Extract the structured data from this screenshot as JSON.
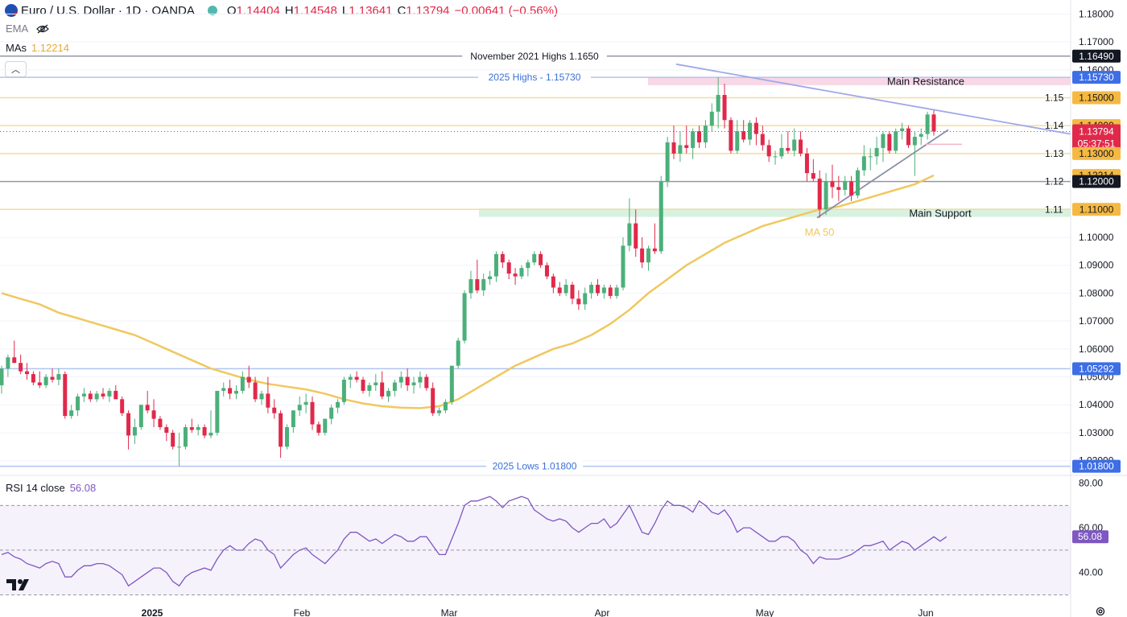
{
  "header": {
    "symbol": "Euro / U.S. Dollar · 1D · OANDA",
    "o_label": "O",
    "o": "1.14404",
    "h_label": "H",
    "h": "1.14548",
    "l_label": "L",
    "l": "1.13641",
    "c_label": "C",
    "c": "1.13794",
    "change": "−0.00641 (−0.56%)"
  },
  "indicators": {
    "ema_label": "EMA",
    "mas_label": "MAs",
    "mas_value": "1.12214",
    "rsi_label": "RSI 14 close",
    "rsi_value": "56.08"
  },
  "colors": {
    "up": "#26a69a",
    "up_body": "#4caf7a",
    "down": "#e0294a",
    "ma": "#f0c85f",
    "rsi": "#7e57c2",
    "resistance_zone": "#f8d7e6",
    "support_zone": "#d9f1df",
    "level_blue": "#b0c4f0",
    "level_yellow": "#f5dd9a",
    "level_grey": "#9598a1",
    "trend": "#a0a8e8"
  },
  "chart_data": {
    "type": "candlestick",
    "title": "Euro / U.S. Dollar · 1D · OANDA",
    "x_ticks": [
      "2025",
      "Feb",
      "Mar",
      "Apr",
      "May",
      "Jun"
    ],
    "y_ticks": [
      "1.18000",
      "1.17000",
      "1.16000",
      "1.15000",
      "1.14000",
      "1.13000",
      "1.12000",
      "1.11000",
      "1.10000",
      "1.09000",
      "1.08000",
      "1.07000",
      "1.06000",
      "1.05000",
      "1.04000",
      "1.03000",
      "1.02000"
    ],
    "ylim": [
      1.015,
      1.185
    ],
    "candles": [
      [
        1.047,
        1.054,
        1.044,
        1.053
      ],
      [
        1.053,
        1.058,
        1.05,
        1.057
      ],
      [
        1.057,
        1.063,
        1.055,
        1.055
      ],
      [
        1.055,
        1.058,
        1.051,
        1.052
      ],
      [
        1.052,
        1.055,
        1.049,
        1.051
      ],
      [
        1.051,
        1.052,
        1.047,
        1.048
      ],
      [
        1.048,
        1.052,
        1.046,
        1.047
      ],
      [
        1.047,
        1.051,
        1.046,
        1.05
      ],
      [
        1.05,
        1.053,
        1.048,
        1.049
      ],
      [
        1.049,
        1.053,
        1.047,
        1.051
      ],
      [
        1.051,
        1.052,
        1.035,
        1.036
      ],
      [
        1.036,
        1.04,
        1.035,
        1.038
      ],
      [
        1.038,
        1.044,
        1.036,
        1.043
      ],
      [
        1.043,
        1.046,
        1.041,
        1.044
      ],
      [
        1.044,
        1.045,
        1.041,
        1.042
      ],
      [
        1.042,
        1.045,
        1.041,
        1.044
      ],
      [
        1.044,
        1.046,
        1.042,
        1.043
      ],
      [
        1.043,
        1.046,
        1.041,
        1.045
      ],
      [
        1.045,
        1.047,
        1.042,
        1.042
      ],
      [
        1.042,
        1.043,
        1.036,
        1.037
      ],
      [
        1.037,
        1.038,
        1.024,
        1.029
      ],
      [
        1.029,
        1.035,
        1.026,
        1.032
      ],
      [
        1.032,
        1.04,
        1.031,
        1.04
      ],
      [
        1.04,
        1.045,
        1.037,
        1.038
      ],
      [
        1.038,
        1.042,
        1.032,
        1.035
      ],
      [
        1.035,
        1.036,
        1.031,
        1.032
      ],
      [
        1.032,
        1.033,
        1.027,
        1.03
      ],
      [
        1.03,
        1.031,
        1.024,
        1.025
      ],
      [
        1.025,
        1.03,
        1.018,
        1.025
      ],
      [
        1.025,
        1.033,
        1.024,
        1.032
      ],
      [
        1.032,
        1.035,
        1.03,
        1.031
      ],
      [
        1.031,
        1.033,
        1.029,
        1.032
      ],
      [
        1.032,
        1.033,
        1.028,
        1.029
      ],
      [
        1.029,
        1.038,
        1.028,
        1.03
      ],
      [
        1.03,
        1.045,
        1.029,
        1.045
      ],
      [
        1.045,
        1.048,
        1.043,
        1.046
      ],
      [
        1.046,
        1.049,
        1.042,
        1.044
      ],
      [
        1.044,
        1.047,
        1.042,
        1.045
      ],
      [
        1.045,
        1.052,
        1.044,
        1.05
      ],
      [
        1.05,
        1.054,
        1.046,
        1.048
      ],
      [
        1.048,
        1.05,
        1.041,
        1.042
      ],
      [
        1.042,
        1.045,
        1.04,
        1.044
      ],
      [
        1.044,
        1.05,
        1.037,
        1.039
      ],
      [
        1.039,
        1.042,
        1.035,
        1.037
      ],
      [
        1.037,
        1.038,
        1.021,
        1.025
      ],
      [
        1.025,
        1.033,
        1.024,
        1.032
      ],
      [
        1.032,
        1.038,
        1.03,
        1.038
      ],
      [
        1.038,
        1.043,
        1.036,
        1.04
      ],
      [
        1.04,
        1.044,
        1.037,
        1.041
      ],
      [
        1.041,
        1.043,
        1.031,
        1.033
      ],
      [
        1.033,
        1.034,
        1.029,
        1.03
      ],
      [
        1.03,
        1.035,
        1.029,
        1.035
      ],
      [
        1.035,
        1.04,
        1.033,
        1.039
      ],
      [
        1.039,
        1.042,
        1.037,
        1.041
      ],
      [
        1.041,
        1.05,
        1.04,
        1.049
      ],
      [
        1.049,
        1.051,
        1.046,
        1.05
      ],
      [
        1.05,
        1.052,
        1.048,
        1.049
      ],
      [
        1.049,
        1.05,
        1.044,
        1.045
      ],
      [
        1.045,
        1.048,
        1.043,
        1.047
      ],
      [
        1.047,
        1.051,
        1.045,
        1.048
      ],
      [
        1.048,
        1.052,
        1.042,
        1.043
      ],
      [
        1.043,
        1.046,
        1.041,
        1.045
      ],
      [
        1.045,
        1.049,
        1.043,
        1.048
      ],
      [
        1.048,
        1.052,
        1.046,
        1.05
      ],
      [
        1.05,
        1.053,
        1.045,
        1.047
      ],
      [
        1.047,
        1.05,
        1.044,
        1.048
      ],
      [
        1.048,
        1.052,
        1.046,
        1.05
      ],
      [
        1.05,
        1.051,
        1.045,
        1.046
      ],
      [
        1.046,
        1.048,
        1.036,
        1.037
      ],
      [
        1.037,
        1.039,
        1.036,
        1.038
      ],
      [
        1.038,
        1.042,
        1.037,
        1.041
      ],
      [
        1.041,
        1.054,
        1.04,
        1.054
      ],
      [
        1.054,
        1.064,
        1.053,
        1.063
      ],
      [
        1.063,
        1.081,
        1.062,
        1.08
      ],
      [
        1.08,
        1.088,
        1.078,
        1.085
      ],
      [
        1.085,
        1.092,
        1.08,
        1.081
      ],
      [
        1.081,
        1.087,
        1.079,
        1.085
      ],
      [
        1.085,
        1.088,
        1.083,
        1.086
      ],
      [
        1.086,
        1.095,
        1.084,
        1.094
      ],
      [
        1.094,
        1.095,
        1.089,
        1.091
      ],
      [
        1.091,
        1.092,
        1.085,
        1.087
      ],
      [
        1.087,
        1.089,
        1.083,
        1.086
      ],
      [
        1.086,
        1.09,
        1.085,
        1.089
      ],
      [
        1.089,
        1.092,
        1.086,
        1.091
      ],
      [
        1.091,
        1.095,
        1.09,
        1.094
      ],
      [
        1.094,
        1.095,
        1.089,
        1.09
      ],
      [
        1.09,
        1.091,
        1.085,
        1.086
      ],
      [
        1.086,
        1.087,
        1.08,
        1.082
      ],
      [
        1.082,
        1.084,
        1.079,
        1.08
      ],
      [
        1.08,
        1.085,
        1.079,
        1.083
      ],
      [
        1.083,
        1.084,
        1.076,
        1.078
      ],
      [
        1.078,
        1.081,
        1.074,
        1.076
      ],
      [
        1.076,
        1.082,
        1.074,
        1.08
      ],
      [
        1.08,
        1.084,
        1.078,
        1.083
      ],
      [
        1.083,
        1.085,
        1.079,
        1.08
      ],
      [
        1.08,
        1.083,
        1.078,
        1.082
      ],
      [
        1.082,
        1.083,
        1.078,
        1.079
      ],
      [
        1.079,
        1.083,
        1.078,
        1.082
      ],
      [
        1.082,
        1.1,
        1.081,
        1.097
      ],
      [
        1.097,
        1.114,
        1.095,
        1.105
      ],
      [
        1.105,
        1.11,
        1.093,
        1.096
      ],
      [
        1.096,
        1.1,
        1.089,
        1.091
      ],
      [
        1.091,
        1.097,
        1.088,
        1.096
      ],
      [
        1.096,
        1.105,
        1.094,
        1.095
      ],
      [
        1.095,
        1.122,
        1.094,
        1.12
      ],
      [
        1.12,
        1.136,
        1.118,
        1.134
      ],
      [
        1.134,
        1.14,
        1.128,
        1.13
      ],
      [
        1.13,
        1.138,
        1.127,
        1.133
      ],
      [
        1.133,
        1.14,
        1.13,
        1.132
      ],
      [
        1.132,
        1.139,
        1.128,
        1.138
      ],
      [
        1.138,
        1.14,
        1.132,
        1.134
      ],
      [
        1.134,
        1.142,
        1.132,
        1.14
      ],
      [
        1.14,
        1.148,
        1.138,
        1.145
      ],
      [
        1.145,
        1.1573,
        1.139,
        1.151
      ],
      [
        1.151,
        1.155,
        1.139,
        1.142
      ],
      [
        1.142,
        1.143,
        1.13,
        1.131
      ],
      [
        1.131,
        1.142,
        1.13,
        1.138
      ],
      [
        1.138,
        1.142,
        1.134,
        1.135
      ],
      [
        1.135,
        1.142,
        1.133,
        1.141
      ],
      [
        1.141,
        1.143,
        1.133,
        1.137
      ],
      [
        1.137,
        1.14,
        1.131,
        1.133
      ],
      [
        1.133,
        1.135,
        1.127,
        1.129
      ],
      [
        1.129,
        1.131,
        1.126,
        1.129
      ],
      [
        1.129,
        1.137,
        1.128,
        1.132
      ],
      [
        1.132,
        1.138,
        1.13,
        1.131
      ],
      [
        1.131,
        1.139,
        1.129,
        1.135
      ],
      [
        1.135,
        1.138,
        1.129,
        1.13
      ],
      [
        1.13,
        1.132,
        1.12,
        1.123
      ],
      [
        1.123,
        1.128,
        1.12,
        1.121
      ],
      [
        1.121,
        1.124,
        1.107,
        1.11
      ],
      [
        1.11,
        1.123,
        1.108,
        1.12
      ],
      [
        1.12,
        1.126,
        1.114,
        1.118
      ],
      [
        1.118,
        1.122,
        1.113,
        1.117
      ],
      [
        1.117,
        1.122,
        1.115,
        1.12
      ],
      [
        1.12,
        1.122,
        1.113,
        1.115
      ],
      [
        1.115,
        1.125,
        1.114,
        1.124
      ],
      [
        1.124,
        1.133,
        1.122,
        1.129
      ],
      [
        1.129,
        1.132,
        1.124,
        1.129
      ],
      [
        1.129,
        1.136,
        1.126,
        1.132
      ],
      [
        1.132,
        1.138,
        1.127,
        1.137
      ],
      [
        1.137,
        1.138,
        1.13,
        1.131
      ],
      [
        1.131,
        1.139,
        1.13,
        1.138
      ],
      [
        1.138,
        1.141,
        1.135,
        1.139
      ],
      [
        1.139,
        1.14,
        1.132,
        1.133
      ],
      [
        1.133,
        1.138,
        1.122,
        1.136
      ],
      [
        1.136,
        1.139,
        1.133,
        1.137
      ],
      [
        1.137,
        1.145,
        1.135,
        1.144
      ],
      [
        1.144,
        1.1455,
        1.1364,
        1.1379
      ]
    ],
    "ma50": [
      [
        0,
        1.08
      ],
      [
        3,
        1.078
      ],
      [
        6,
        1.076
      ],
      [
        9,
        1.073
      ],
      [
        12,
        1.071
      ],
      [
        15,
        1.069
      ],
      [
        18,
        1.067
      ],
      [
        21,
        1.065
      ],
      [
        24,
        1.062
      ],
      [
        27,
        1.059
      ],
      [
        30,
        1.056
      ],
      [
        33,
        1.053
      ],
      [
        36,
        1.051
      ],
      [
        39,
        1.049
      ],
      [
        42,
        1.0475
      ],
      [
        45,
        1.0465
      ],
      [
        48,
        1.0455
      ],
      [
        51,
        1.044
      ],
      [
        54,
        1.042
      ],
      [
        57,
        1.0405
      ],
      [
        60,
        1.0395
      ],
      [
        63,
        1.039
      ],
      [
        66,
        1.0388
      ],
      [
        69,
        1.0395
      ],
      [
        72,
        1.042
      ],
      [
        75,
        1.046
      ],
      [
        78,
        1.05
      ],
      [
        81,
        1.054
      ],
      [
        84,
        1.057
      ],
      [
        87,
        1.06
      ],
      [
        90,
        1.062
      ],
      [
        93,
        1.065
      ],
      [
        96,
        1.069
      ],
      [
        99,
        1.074
      ],
      [
        102,
        1.08
      ],
      [
        105,
        1.085
      ],
      [
        108,
        1.09
      ],
      [
        111,
        1.094
      ],
      [
        114,
        1.098
      ],
      [
        117,
        1.101
      ],
      [
        120,
        1.104
      ],
      [
        123,
        1.106
      ],
      [
        126,
        1.108
      ],
      [
        129,
        1.11
      ],
      [
        132,
        1.111
      ],
      [
        135,
        1.113
      ],
      [
        138,
        1.115
      ],
      [
        141,
        1.117
      ],
      [
        144,
        1.119
      ],
      [
        147,
        1.1222
      ]
    ],
    "rsi": [
      48,
      49,
      47,
      46,
      44,
      43,
      42,
      44,
      45,
      44,
      38,
      38,
      41,
      43,
      43,
      44,
      44,
      43,
      41,
      39,
      34,
      36,
      38,
      40,
      42,
      42,
      40,
      36,
      34,
      38,
      40,
      41,
      42,
      41,
      46,
      50,
      52,
      50,
      50,
      53,
      55,
      54,
      50,
      48,
      42,
      45,
      48,
      50,
      51,
      48,
      46,
      44,
      47,
      50,
      55,
      58,
      58,
      56,
      54,
      55,
      53,
      55,
      57,
      56,
      54,
      54,
      56,
      56,
      52,
      48,
      48,
      55,
      62,
      70,
      72,
      72,
      73,
      74,
      72,
      69,
      72,
      73,
      74,
      73,
      68,
      66,
      64,
      63,
      64,
      63,
      60,
      58,
      60,
      62,
      62,
      64,
      60,
      62,
      66,
      70,
      64,
      58,
      57,
      62,
      68,
      72,
      70,
      70,
      69,
      67,
      72,
      70,
      67,
      66,
      68,
      64,
      58,
      60,
      60,
      58,
      56,
      54,
      54,
      56,
      56,
      54,
      50,
      48,
      44,
      47,
      46,
      46,
      46,
      47,
      48,
      50,
      52,
      52,
      53,
      54,
      50,
      52,
      54,
      53,
      50,
      52,
      54,
      56,
      54,
      56
    ],
    "rsi_ticks": [
      "80.00",
      "60.00",
      "40.00"
    ],
    "rsi_ylim": [
      28,
      82
    ],
    "levels": [
      {
        "label": "November 2021 Highs 1.1650",
        "tag": "1.16490"
      },
      {
        "label": "2025 Highs - 1.15730",
        "tag": "1.15730"
      },
      {
        "label": "1.15",
        "tag": "1.15000"
      },
      {
        "label": "1.14",
        "tag": "1.14000"
      },
      {
        "label": "1.13",
        "tag": "1.13000"
      },
      {
        "label": "1.12",
        "tag": "1.12000"
      },
      {
        "label": "1.11",
        "tag": "1.11000"
      },
      {
        "label": "",
        "tag": "1.05292"
      },
      {
        "label": "2025 Lows 1.01800",
        "tag": "1.01800"
      }
    ],
    "ma_tag": "1.12214",
    "price_tag": "1.13794",
    "countdown": "05:37:51",
    "rsi_tag": "56.08",
    "annotations": {
      "resistance": "Main Resistance",
      "support": "Main Support",
      "ma50": "MA 50"
    }
  }
}
